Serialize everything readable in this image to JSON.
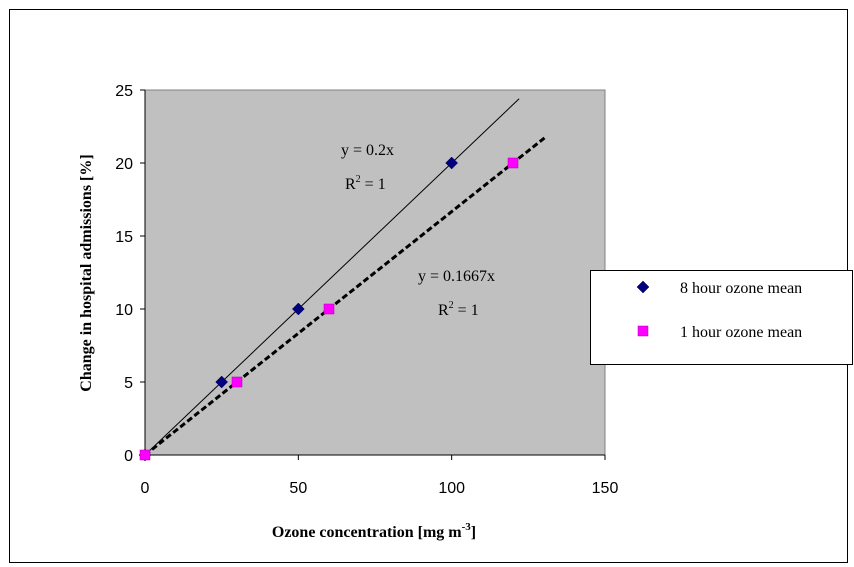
{
  "chart_data": {
    "type": "scatter",
    "xlabel": "Ozone concentration [mg m",
    "xlabel_sup": "-3",
    "xlabel_end": "]",
    "ylabel": "Change in hospital admissions [%]",
    "xlim": [
      0,
      150
    ],
    "ylim": [
      0,
      25
    ],
    "x_ticks": [
      0,
      50,
      100,
      150
    ],
    "y_ticks": [
      0,
      5,
      10,
      15,
      20,
      25
    ],
    "plot_background": "#c0c0c0",
    "grid": false,
    "legend_position": "right",
    "series": [
      {
        "name": "8 hour ozone mean",
        "marker": "diamond",
        "color": "#000080",
        "points": [
          {
            "x": 0,
            "y": 0
          },
          {
            "x": 25,
            "y": 5
          },
          {
            "x": 50,
            "y": 10
          },
          {
            "x": 100,
            "y": 20
          }
        ],
        "trendline": {
          "style": "solid",
          "slope": 0.2,
          "x_end": 122
        },
        "equation": "y = 0.2x",
        "r2_label": "R",
        "r2_sup": "2",
        "r2_value": " = 1"
      },
      {
        "name": "1 hour ozone mean",
        "marker": "square",
        "color": "#ff00ff",
        "points": [
          {
            "x": 0,
            "y": 0
          },
          {
            "x": 30,
            "y": 5
          },
          {
            "x": 60,
            "y": 10
          },
          {
            "x": 120,
            "y": 20
          }
        ],
        "trendline": {
          "style": "dashed",
          "slope": 0.1667,
          "x_end": 131
        },
        "equation": "y = 0.1667x",
        "r2_label": "R",
        "r2_sup": "2",
        "r2_value": " = 1"
      }
    ]
  }
}
